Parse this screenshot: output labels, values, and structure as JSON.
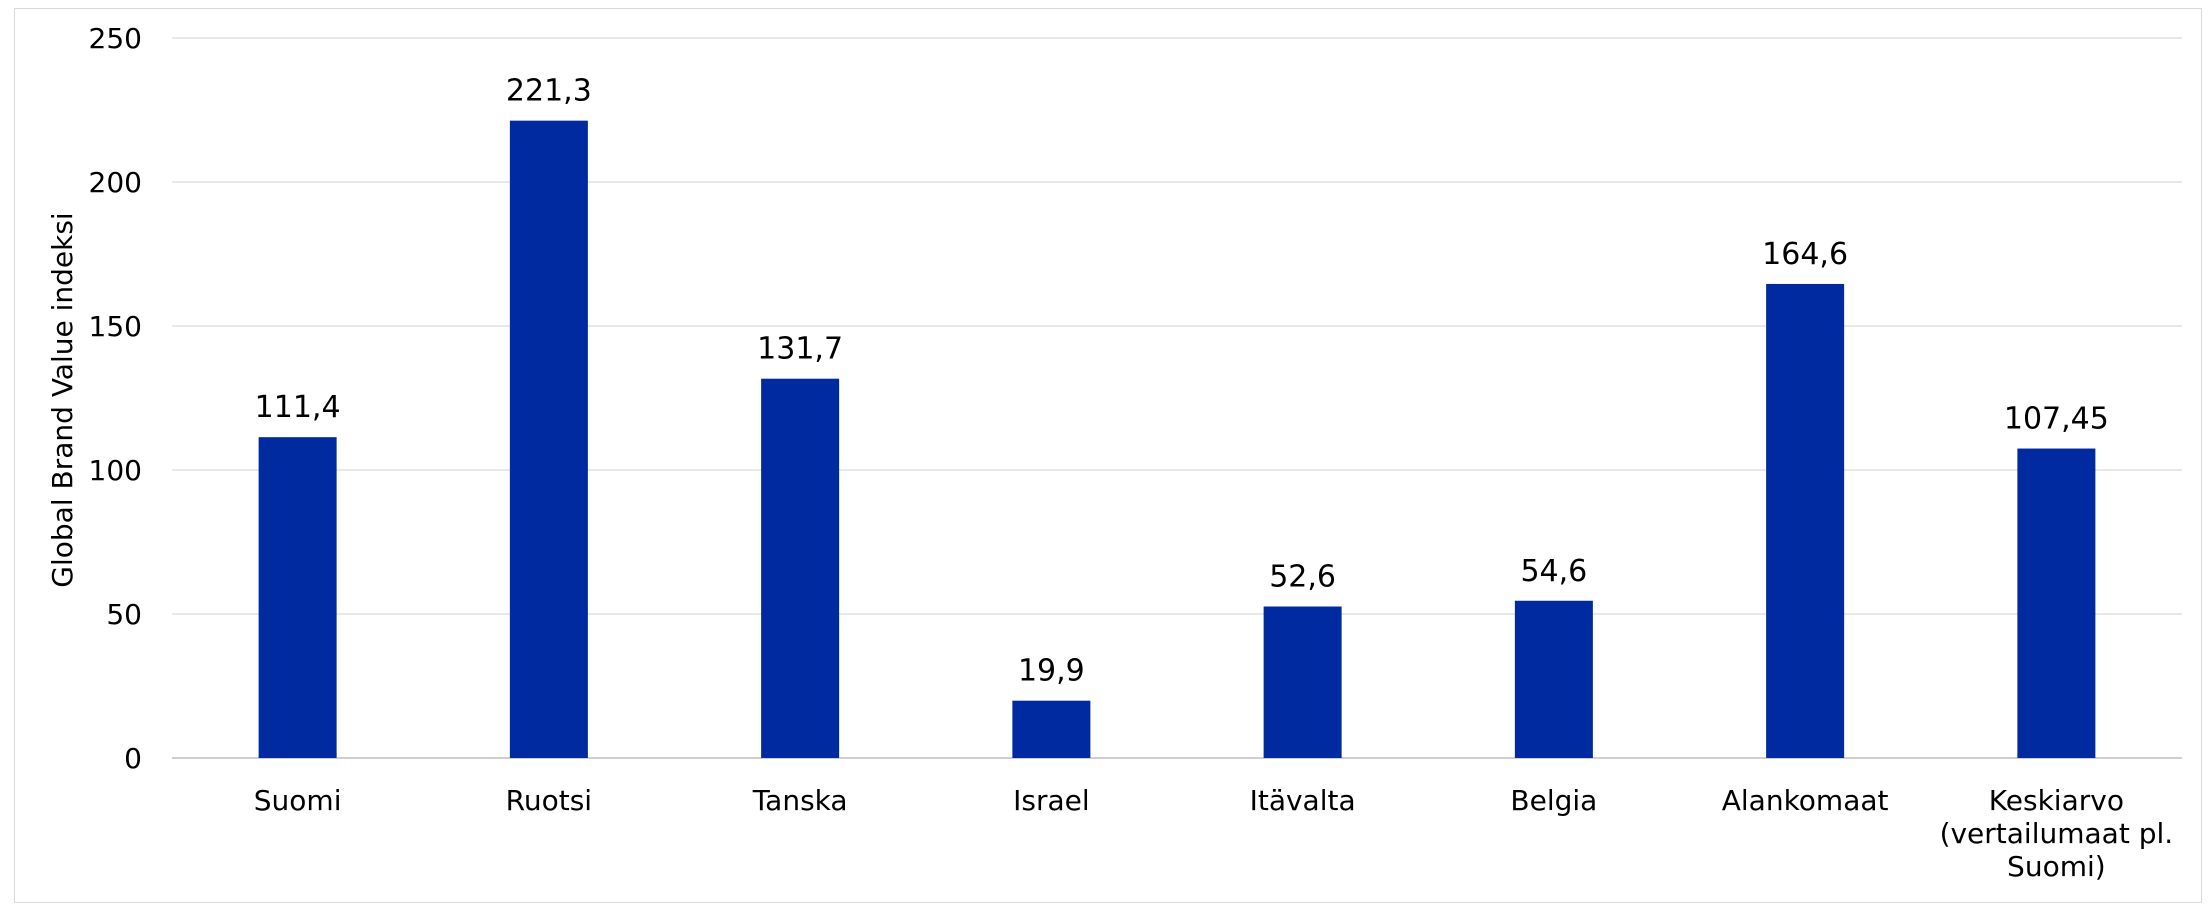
{
  "chart_data": {
    "type": "bar",
    "title": "",
    "xlabel": "",
    "ylabel": "Global Brand Value indeksi",
    "ylim": [
      0,
      250
    ],
    "yticks": [
      0,
      50,
      100,
      150,
      200,
      250
    ],
    "grid": true,
    "legend": "none",
    "categories": [
      [
        "Suomi"
      ],
      [
        "Ruotsi"
      ],
      [
        "Tanska"
      ],
      [
        "Israel"
      ],
      [
        "Itävalta"
      ],
      [
        "Belgia"
      ],
      [
        "Alankomaat"
      ],
      [
        "Keskiarvo",
        "(vertailumaat pl.",
        "Suomi)"
      ]
    ],
    "values": [
      111.4,
      221.3,
      131.7,
      19.9,
      52.6,
      54.6,
      164.6,
      107.45
    ],
    "data_labels": [
      "111,4",
      "221,3",
      "131,7",
      "19,9",
      "52,6",
      "54,6",
      "164,6",
      "107,45"
    ],
    "colors": {
      "bar": "#002aa0",
      "grid": "#d9d9d9",
      "axis": "#bfbfbf"
    }
  }
}
